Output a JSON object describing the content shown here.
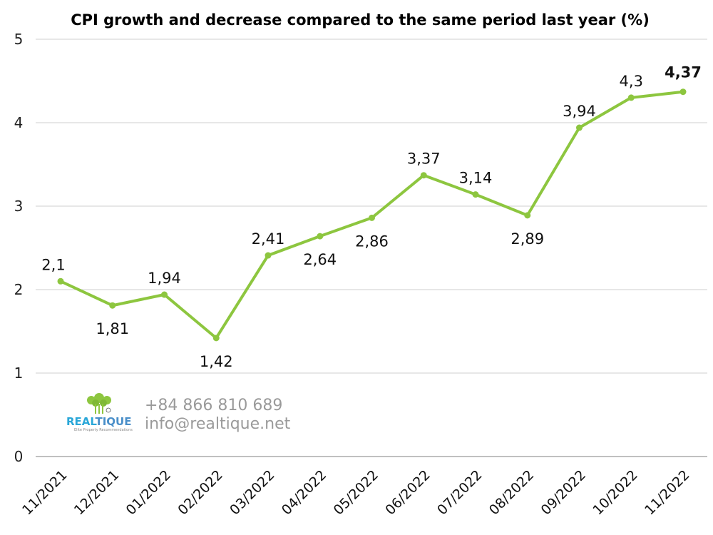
{
  "chart_data": {
    "type": "line",
    "title": "CPI growth and decrease compared to the same period last year (%)",
    "xlabel": "",
    "ylabel": "",
    "ylim": [
      0,
      5
    ],
    "yticks": [
      0,
      1,
      2,
      3,
      4,
      5
    ],
    "grid": true,
    "categories": [
      "11/2021",
      "12/2021",
      "01/2022",
      "02/2022",
      "03/2022",
      "04/2022",
      "05/2022",
      "06/2022",
      "07/2022",
      "08/2022",
      "09/2022",
      "10/2022",
      "11/2022"
    ],
    "series": [
      {
        "values": [
          2.1,
          1.81,
          1.94,
          1.42,
          2.41,
          2.64,
          2.86,
          3.37,
          3.14,
          2.89,
          3.94,
          4.3,
          4.37
        ],
        "data_labels": [
          "2,1",
          "1,81",
          "1,94",
          "1,42",
          "2,41",
          "2,64",
          "2,86",
          "3,37",
          "3,14",
          "2,89",
          "3,94",
          "4,3",
          "4,37"
        ],
        "label_positions": [
          "above",
          "below",
          "above",
          "below",
          "above",
          "below",
          "below",
          "above",
          "above",
          "below",
          "above",
          "above",
          "above"
        ],
        "color": "#8dc63f"
      }
    ]
  },
  "watermark": {
    "phone": "+84 866 810 689",
    "email": "info@realtique.net",
    "brand_part1": "REAL",
    "brand_part2": "TIQUE",
    "tagline": "Elite Property Recommendations",
    "icon": "tree-logo-icon",
    "brand_color": "#2aa7d8"
  }
}
